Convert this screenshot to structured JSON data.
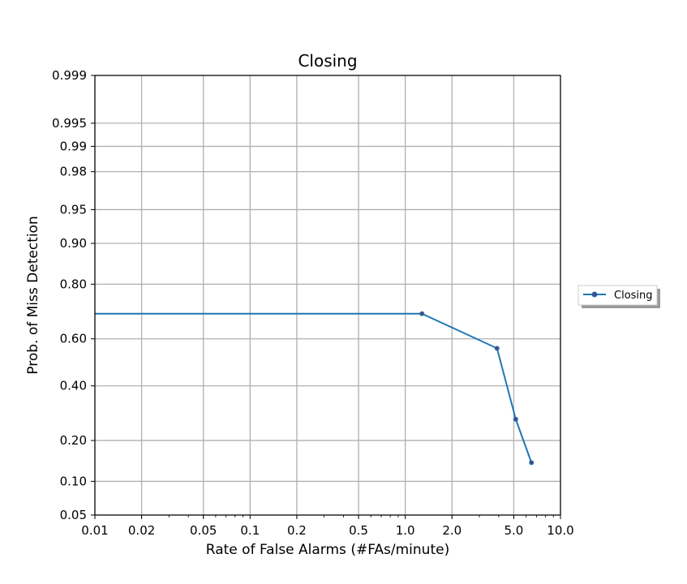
{
  "chart_data": {
    "type": "line",
    "title": "Closing",
    "xlabel": "Rate of False Alarms (#FAs/minute)",
    "ylabel": "Prob. of Miss Detection",
    "x_scale": "log",
    "y_scale": "probit",
    "xlim": [
      0.01,
      10.0
    ],
    "ylim": [
      0.05,
      0.999
    ],
    "x_ticks": [
      0.01,
      0.02,
      0.05,
      0.1,
      0.2,
      0.5,
      1.0,
      2.0,
      5.0,
      10.0
    ],
    "x_tick_labels": [
      "0.01",
      "0.02",
      "0.05",
      "0.1",
      "0.2",
      "0.5",
      "1.0",
      "2.0",
      "5.0",
      "10.0"
    ],
    "y_ticks": [
      0.05,
      0.1,
      0.2,
      0.4,
      0.6,
      0.8,
      0.9,
      0.95,
      0.98,
      0.99,
      0.995,
      0.999
    ],
    "y_tick_labels": [
      "0.05",
      "0.10",
      "0.20",
      "0.40",
      "0.60",
      "0.80",
      "0.90",
      "0.95",
      "0.98",
      "0.99",
      "0.995",
      "0.999"
    ],
    "grid": true,
    "legend_position": "right-outside",
    "series": [
      {
        "name": "Closing",
        "color": "#1f77b4",
        "marker_color": "#4a4a8a",
        "line": {
          "x": [
            0.01,
            1.28,
            3.9,
            5.15,
            6.5
          ],
          "y": [
            0.7,
            0.7,
            0.56,
            0.27,
            0.14
          ]
        },
        "points": {
          "x": [
            1.28,
            3.9,
            5.15,
            6.5
          ],
          "y": [
            0.7,
            0.56,
            0.27,
            0.14
          ]
        }
      }
    ]
  }
}
